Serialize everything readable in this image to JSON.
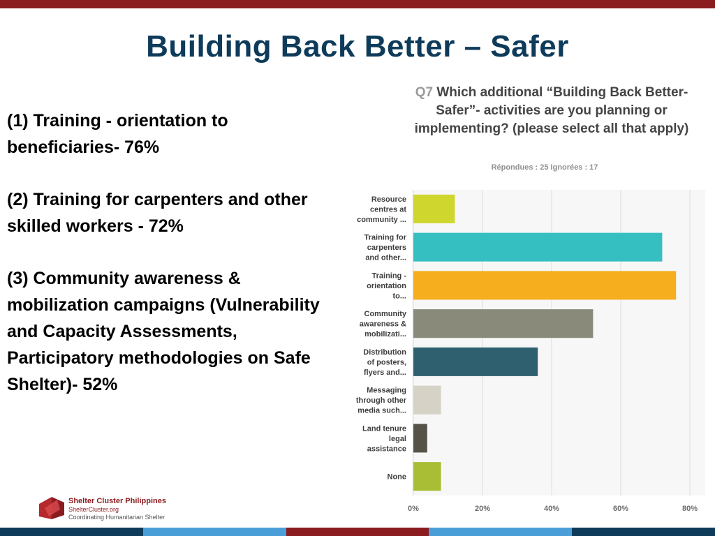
{
  "title": "Building Back Better – Safer",
  "bullets": [
    "(1) Training - orientation to beneficiaries- 76%",
    "(2) Training for carpenters and other skilled workers - 72%",
    "(3) Community awareness & mobilization campaigns (Vulnerability and Capacity Assessments, Participatory methodologies on Safe Shelter)- 52%"
  ],
  "chart_data": {
    "type": "bar",
    "orientation": "horizontal",
    "question_number": "Q7",
    "title": "Which additional “Building Back Better-Safer”- activities are you planning or implementing? (please select all that apply)",
    "responses": "Répondues : 25    Ignorées : 17",
    "categories": [
      "Resource centres at community ...",
      "Training for carpenters and other...",
      "Training - orientation to...",
      "Community awareness & mobilizati...",
      "Distribution of posters, flyers and...",
      "Messaging through other media such...",
      "Land tenure legal assistance",
      "None"
    ],
    "category_lines": [
      [
        "Resource",
        "centres at",
        "community ..."
      ],
      [
        "Training for",
        "carpenters",
        "and other..."
      ],
      [
        "Training -",
        "orientation",
        "to..."
      ],
      [
        "Community",
        "awareness &",
        "mobilizati..."
      ],
      [
        "Distribution",
        "of posters,",
        "flyers and..."
      ],
      [
        "Messaging",
        "through other",
        "media such..."
      ],
      [
        "Land tenure",
        "legal",
        "assistance"
      ],
      [
        "None"
      ]
    ],
    "values": [
      12,
      72,
      76,
      52,
      36,
      8,
      4,
      8
    ],
    "colors": [
      "#cfd62e",
      "#35bfc0",
      "#f6ad1e",
      "#8a8a7a",
      "#2f6070",
      "#d6d3c6",
      "#555247",
      "#a9be35"
    ],
    "xlim": [
      0,
      80
    ],
    "xticks": [
      "0%",
      "20%",
      "40%",
      "60%",
      "80%"
    ],
    "grid": true
  },
  "footer": {
    "org": "Shelter Cluster Philippines",
    "site": "ShelterCluster.org",
    "tagline": "Coordinating Humanitarian Shelter"
  },
  "colors": {
    "title": "#0f3b5a",
    "brand_red": "#8a1c1f",
    "stripes": [
      "#0f3b5a",
      "#4a9fd8",
      "#8a1c1f",
      "#4a9fd8",
      "#0f3b5a"
    ]
  }
}
